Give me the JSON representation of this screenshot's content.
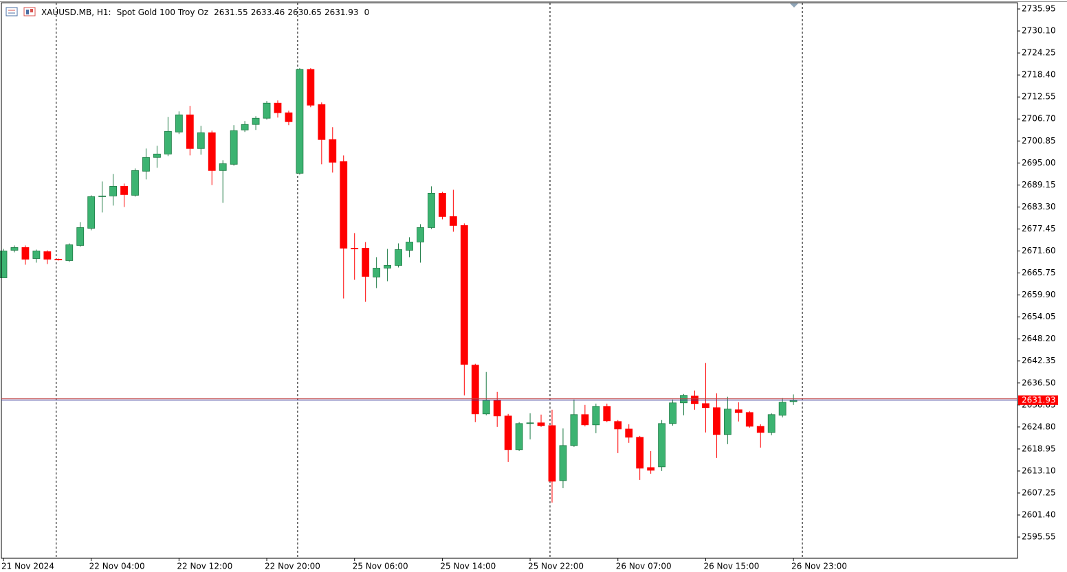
{
  "chart_data": {
    "type": "candlestick",
    "header": {
      "symbol": "XAUUSD.MB, H1:",
      "description": "Spot Gold 100 Troy Oz",
      "ohlc": [
        2631.55,
        2633.46,
        2630.65,
        2631.93
      ],
      "volume": 0
    },
    "categories": [
      "21 Nov 2024",
      null,
      null,
      null,
      null,
      null,
      null,
      null,
      "22 Nov 04:00",
      null,
      null,
      null,
      null,
      null,
      null,
      null,
      "22 Nov 12:00",
      null,
      null,
      null,
      null,
      null,
      null,
      null,
      "22 Nov 20:00",
      null,
      null,
      null,
      null,
      null,
      null,
      null,
      "25 Nov 06:00",
      null,
      null,
      null,
      null,
      null,
      null,
      null,
      "25 Nov 14:00",
      null,
      null,
      null,
      null,
      null,
      null,
      null,
      "25 Nov 22:00",
      null,
      null,
      null,
      null,
      null,
      null,
      null,
      "26 Nov 07:00",
      null,
      null,
      null,
      null,
      null,
      null,
      null,
      "26 Nov 15:00",
      null,
      null,
      null,
      null,
      null,
      null,
      null,
      "26 Nov 23:00"
    ],
    "open": [
      2664.48,
      2671.79,
      2672.52,
      2669.59,
      2671.42,
      2669.41,
      2669.05,
      2673.07,
      2677.64,
      2686.05,
      2686.23,
      2688.79,
      2686.41,
      2692.81,
      2696.47,
      2697.38,
      2703.23,
      2707.8,
      2698.84,
      2703.05,
      2692.99,
      2694.64,
      2703.78,
      2705.24,
      2706.89,
      2710.91,
      2708.35,
      2692.26,
      2719.86,
      2710.54,
      2701.22,
      2695.37,
      2672.34,
      2672.34,
      2664.66,
      2667.04,
      2667.77,
      2671.79,
      2673.98,
      2677.82,
      2686.96,
      2680.75,
      2678.37,
      2641.26,
      2628.28,
      2631.94,
      2627.73,
      2618.78,
      2625.72,
      2625.91,
      2625.17,
      2610.55,
      2619.87,
      2628.1,
      2625.36,
      2630.29,
      2626.27,
      2624.26,
      2622.07,
      2614.02,
      2614.21,
      2625.72,
      2631.21,
      2633.03,
      2631.02,
      2629.93,
      2622.8,
      2629.38,
      2628.65,
      2624.99,
      2623.35,
      2627.92,
      2631.55
    ],
    "high": [
      2672.15,
      2673.07,
      2673.07,
      2671.97,
      2671.79,
      2669.59,
      2673.62,
      2679.28,
      2686.41,
      2690.07,
      2692.08,
      2689.52,
      2693.54,
      2698.84,
      2699.57,
      2707.25,
      2708.71,
      2710.18,
      2704.87,
      2703.6,
      2695.73,
      2705.06,
      2706.15,
      2707.43,
      2711.46,
      2711.64,
      2708.9,
      2720.23,
      2720.23,
      2711.09,
      2704.51,
      2697.01,
      2676.36,
      2673.98,
      2669.96,
      2672.15,
      2673.62,
      2675.26,
      2678.73,
      2688.79,
      2687.33,
      2687.87,
      2678.92,
      2641.62,
      2639.43,
      2634.13,
      2628.28,
      2626.09,
      2628.46,
      2628.1,
      2629.38,
      2624.44,
      2632.12,
      2630.66,
      2631.02,
      2631.02,
      2626.64,
      2625.54,
      2622.43,
      2618.41,
      2626.64,
      2632.12,
      2633.58,
      2634.5,
      2641.81,
      2633.77,
      2632.85,
      2631.39,
      2629.01,
      2625.54,
      2628.46,
      2632.49,
      2633.46
    ],
    "low": [
      2664.48,
      2671.24,
      2667.95,
      2668.5,
      2668.13,
      2669.05,
      2668.68,
      2672.7,
      2677.09,
      2681.84,
      2683.67,
      2683.3,
      2686.05,
      2690.62,
      2693.72,
      2696.83,
      2702.68,
      2697.01,
      2697.2,
      2689.15,
      2684.4,
      2694.27,
      2703.23,
      2703.78,
      2706.52,
      2707.07,
      2705.06,
      2691.9,
      2709.81,
      2694.64,
      2692.44,
      2658.99,
      2663.93,
      2658.08,
      2661.73,
      2663.56,
      2667.22,
      2669.96,
      2668.5,
      2677.45,
      2680.01,
      2676.72,
      2633.22,
      2626.09,
      2627.92,
      2624.81,
      2615.49,
      2618.41,
      2621.52,
      2624.81,
      2604.7,
      2608.54,
      2619.51,
      2624.99,
      2623.16,
      2626.09,
      2617.86,
      2620.6,
      2610.73,
      2612.38,
      2613.11,
      2625.17,
      2627.92,
      2629.38,
      2623.35,
      2616.58,
      2620.24,
      2626.27,
      2624.63,
      2619.32,
      2622.61,
      2627.37,
      2630.65
    ],
    "close": [
      2671.61,
      2672.52,
      2669.41,
      2671.61,
      2669.41,
      2669.23,
      2673.25,
      2677.82,
      2686.05,
      2686.23,
      2688.79,
      2686.59,
      2692.99,
      2696.47,
      2697.38,
      2703.41,
      2707.8,
      2698.84,
      2703.05,
      2692.99,
      2694.82,
      2703.6,
      2705.24,
      2706.89,
      2710.91,
      2708.35,
      2705.97,
      2719.86,
      2710.36,
      2701.22,
      2695.19,
      2672.34,
      2672.15,
      2664.84,
      2667.04,
      2667.77,
      2671.97,
      2673.98,
      2677.82,
      2686.96,
      2680.75,
      2678.37,
      2641.44,
      2628.28,
      2631.94,
      2627.73,
      2618.78,
      2625.72,
      2625.91,
      2625.17,
      2610.37,
      2619.87,
      2628.1,
      2625.36,
      2630.29,
      2626.45,
      2624.26,
      2622.07,
      2613.84,
      2613.29,
      2625.72,
      2631.21,
      2633.22,
      2631.02,
      2629.93,
      2622.8,
      2629.56,
      2628.65,
      2624.99,
      2623.35,
      2628.1,
      2631.39,
      2631.93
    ],
    "up_color": "#3cb371",
    "down_color": "#ff0000",
    "last_price": 2631.93,
    "ylim": [
      2589.9,
      2737.6
    ],
    "yticks": [
      2735.95,
      {
        "value": 2730.1,
        "label": "2730.10"
      },
      2724.25,
      {
        "value": 2718.4,
        "label": "2718.40"
      },
      2712.55,
      {
        "value": 2706.7,
        "label": "2706.70"
      },
      2700.85,
      {
        "value": 2695,
        "label": "2695.00"
      },
      2689.15,
      {
        "value": 2683.3,
        "label": "2683.30"
      },
      2677.45,
      {
        "value": 2671.6,
        "label": "2671.60"
      },
      2665.75,
      {
        "value": 2659.9,
        "label": "2659.90"
      },
      2654.05,
      {
        "value": 2648.2,
        "label": "2648.20"
      },
      2642.35,
      {
        "value": 2636.5,
        "label": "2636.50"
      },
      2630.65,
      {
        "value": 2624.8,
        "label": "2624.80"
      },
      2618.95,
      {
        "value": 2613.1,
        "label": "2613.10"
      },
      2607.25,
      {
        "value": 2601.4,
        "label": "2601.40"
      },
      2595.55
    ]
  }
}
